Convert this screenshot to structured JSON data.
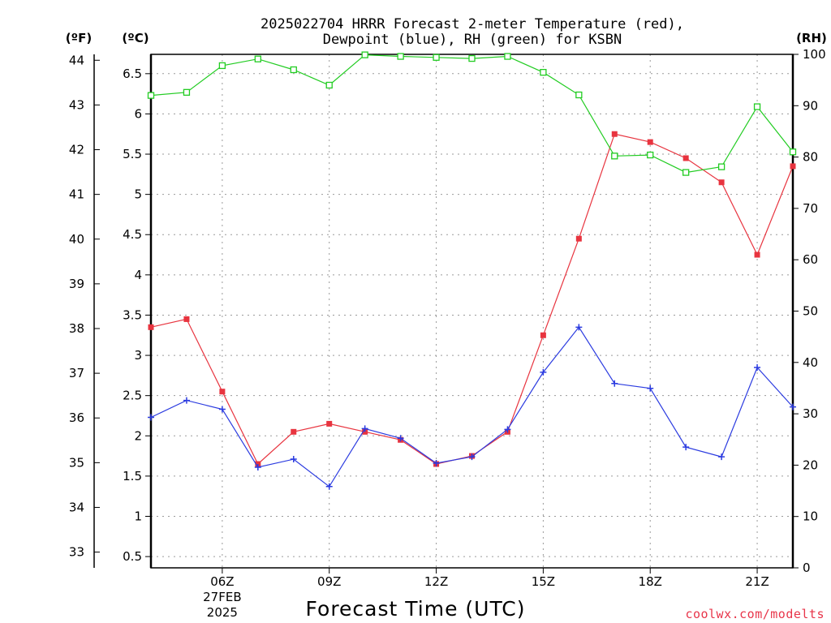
{
  "chart_data": {
    "type": "line",
    "title_line1": "2025022704 HRRR Forecast 2-meter Temperature (red),",
    "title_line2": "Dewpoint (blue), RH (green) for KSBN",
    "xlabel": "Forecast Time (UTC)",
    "left_f_unit": "(ºF)",
    "left_c_unit": "(ºC)",
    "right_unit": "(RH)",
    "credit": "coolwx.com/modelts",
    "x_hours": [
      4,
      5,
      6,
      7,
      8,
      9,
      10,
      11,
      12,
      13,
      14,
      15,
      16,
      17,
      18,
      19,
      20,
      21,
      22
    ],
    "x_range": [
      4,
      22
    ],
    "x_ticks": [
      {
        "hour": 6,
        "label": "06Z",
        "sub1": "27FEB",
        "sub2": "2025"
      },
      {
        "hour": 9,
        "label": "09Z"
      },
      {
        "hour": 12,
        "label": "12Z"
      },
      {
        "hour": 15,
        "label": "15Z"
      },
      {
        "hour": 18,
        "label": "18Z"
      },
      {
        "hour": 21,
        "label": "21Z"
      }
    ],
    "celsius_range": [
      0.36,
      6.74
    ],
    "celsius_ticks": [
      "0.5",
      "1",
      "1.5",
      "2",
      "2.5",
      "3",
      "3.5",
      "4",
      "4.5",
      "5",
      "5.5",
      "6",
      "6.5"
    ],
    "fahrenheit_ticks": [
      "33",
      "34",
      "35",
      "36",
      "37",
      "38",
      "39",
      "40",
      "41",
      "42",
      "43",
      "44"
    ],
    "rh_range": [
      0,
      100
    ],
    "rh_ticks": [
      "0",
      "10",
      "20",
      "30",
      "40",
      "50",
      "60",
      "70",
      "80",
      "90",
      "100"
    ],
    "grid": true,
    "series": [
      {
        "name": "Temperature",
        "unit": "C",
        "color": "#e8343f",
        "marker": "filled-square",
        "values": [
          3.35,
          3.45,
          2.55,
          1.65,
          2.05,
          2.15,
          2.05,
          1.95,
          1.65,
          1.75,
          2.05,
          3.25,
          4.45,
          5.75,
          5.65,
          5.45,
          5.15,
          4.25,
          5.35
        ]
      },
      {
        "name": "Dewpoint",
        "unit": "C",
        "color": "#2b3be0",
        "marker": "plus",
        "values": [
          2.23,
          2.44,
          2.33,
          1.61,
          1.71,
          1.37,
          2.09,
          1.97,
          1.66,
          1.74,
          2.08,
          2.79,
          3.35,
          2.65,
          2.59,
          1.86,
          1.74,
          2.85,
          2.36
        ]
      },
      {
        "name": "RH",
        "unit": "%",
        "color": "#22cc22",
        "marker": "open-square",
        "values": [
          92,
          92.6,
          97.8,
          99.1,
          97,
          94,
          99.9,
          99.6,
          99.4,
          99.2,
          99.6,
          96.5,
          92.1,
          80.2,
          80.4,
          77,
          78.1,
          89.8,
          81
        ]
      }
    ]
  }
}
